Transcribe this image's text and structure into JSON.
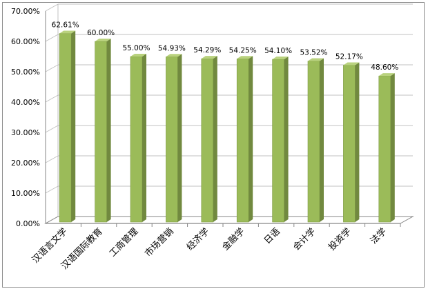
{
  "chart_data": {
    "type": "bar",
    "title": "",
    "xlabel": "",
    "ylabel": "",
    "ylim": [
      0,
      70
    ],
    "y_ticks": [
      "0.00%",
      "10.00%",
      "20.00%",
      "30.00%",
      "40.00%",
      "50.00%",
      "60.00%",
      "70.00%"
    ],
    "grid": true,
    "legend": "none",
    "style": "3d-columns",
    "colors": {
      "bar_front": "#9bbb59",
      "bar_side": "#71893f",
      "bar_top": "#b9d27e",
      "grid": "#c0c0c0",
      "axis": "#868686"
    },
    "categories": [
      "汉语言文学",
      "汉语国际教育",
      "工商管理",
      "市场营销",
      "经济学",
      "金融学",
      "日语",
      "会计学",
      "投资学",
      "法学"
    ],
    "values": [
      62.61,
      60.0,
      55.0,
      54.93,
      54.29,
      54.25,
      54.1,
      53.52,
      52.17,
      48.6
    ],
    "value_labels": [
      "62.61%",
      "60.00%",
      "55.00%",
      "54.93%",
      "54.29%",
      "54.25%",
      "54.10%",
      "53.52%",
      "52.17%",
      "48.60%"
    ]
  }
}
